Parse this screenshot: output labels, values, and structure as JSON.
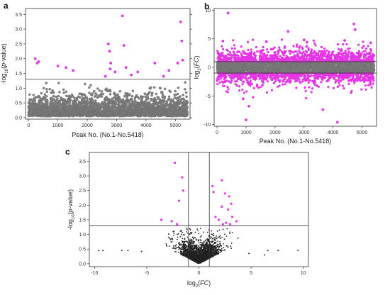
{
  "figure": {
    "panels": [
      {
        "label": "a"
      },
      {
        "label": "b"
      },
      {
        "label": "c"
      }
    ]
  },
  "chart_data": [
    {
      "id": "a",
      "type": "scatter",
      "title": "",
      "xlabel": "Peak No. (No.1-No.5418)",
      "ylabel": "-log10(p-value)",
      "xlim": [
        -100,
        5500
      ],
      "ylim": [
        -0.05,
        3.7
      ],
      "xticks": [
        0,
        1000,
        2000,
        3000,
        4000,
        5000
      ],
      "yticks": [
        0.0,
        0.5,
        1.0,
        1.5,
        2.0,
        2.5,
        3.0,
        3.5
      ],
      "threshold_y": 1.3,
      "grid": false,
      "colors": {
        "significant": "#e535e6",
        "non_significant": "#808080",
        "threshold": "#555555"
      },
      "significant_points": [
        [
          230,
          2.0
        ],
        [
          300,
          1.85
        ],
        [
          350,
          1.9
        ],
        [
          1000,
          1.75
        ],
        [
          1280,
          1.7
        ],
        [
          1520,
          1.6
        ],
        [
          2620,
          1.4
        ],
        [
          2720,
          2.5
        ],
        [
          2760,
          2.25
        ],
        [
          2800,
          1.85
        ],
        [
          2780,
          1.65
        ],
        [
          2950,
          1.55
        ],
        [
          3200,
          3.45
        ],
        [
          3250,
          2.45
        ],
        [
          3320,
          1.7
        ],
        [
          3500,
          1.45
        ],
        [
          3720,
          1.55
        ],
        [
          4300,
          1.85
        ],
        [
          4600,
          1.4
        ],
        [
          4780,
          1.6
        ],
        [
          5080,
          1.85
        ],
        [
          5180,
          3.25
        ],
        [
          5220,
          2.6
        ],
        [
          5250,
          1.95
        ]
      ]
    },
    {
      "id": "b",
      "type": "scatter",
      "title": "",
      "xlabel": "Peak No. (No.1-No.5418)",
      "ylabel": "log2(FC)",
      "xlim": [
        -100,
        5500
      ],
      "ylim": [
        -10.3,
        10.3
      ],
      "xticks": [
        0,
        1000,
        2000,
        3000,
        4000,
        5000
      ],
      "yticks": [
        -10,
        -5,
        0,
        5,
        10
      ],
      "threshold_y": [
        1,
        -1
      ],
      "grid": false,
      "colors": {
        "significant": "#e535e6",
        "non_significant": "#808080",
        "threshold": "#333333"
      },
      "significant_points": [
        [
          380,
          9.5
        ],
        [
          1000,
          -9.2
        ],
        [
          4150,
          -9.6
        ],
        [
          3650,
          -7.4
        ],
        [
          1100,
          -6.8
        ],
        [
          4720,
          7.6
        ],
        [
          4760,
          6.6
        ],
        [
          2450,
          6.3
        ],
        [
          3000,
          4.8
        ],
        [
          1700,
          4.5
        ],
        [
          200,
          4.6
        ],
        [
          4400,
          4.7
        ],
        [
          5300,
          4.3
        ],
        [
          3100,
          4.4
        ],
        [
          900,
          -5.5
        ]
      ]
    },
    {
      "id": "c",
      "type": "scatter",
      "title": "",
      "xlabel": "log2(FC)",
      "ylabel": "-log10(p-value)",
      "xlim": [
        -10.5,
        10.5
      ],
      "ylim": [
        -0.1,
        3.8
      ],
      "xticks": [
        -10,
        -5,
        0,
        5,
        10
      ],
      "yticks": [
        0.0,
        0.5,
        1.0,
        1.5,
        2.0,
        2.5,
        3.0,
        3.5
      ],
      "threshold_y": 1.3,
      "threshold_x": [
        -1,
        1
      ],
      "grid": false,
      "colors": {
        "significant": "#e535e6",
        "non_significant": "#222222",
        "threshold": "#333333"
      },
      "significant_points": [
        [
          -2.3,
          3.45
        ],
        [
          -1.6,
          2.95
        ],
        [
          -1.5,
          2.5
        ],
        [
          -1.9,
          2.15
        ],
        [
          -3.6,
          1.5
        ],
        [
          -2.6,
          1.45
        ],
        [
          -2.1,
          1.35
        ],
        [
          1.3,
          2.65
        ],
        [
          1.4,
          2.45
        ],
        [
          2.2,
          2.85
        ],
        [
          2.5,
          2.4
        ],
        [
          2.9,
          2.3
        ],
        [
          2.2,
          1.95
        ],
        [
          3.1,
          2.05
        ],
        [
          2.8,
          1.85
        ],
        [
          3.2,
          1.6
        ],
        [
          3.6,
          1.45
        ],
        [
          2.6,
          1.4
        ],
        [
          1.6,
          1.6
        ],
        [
          1.9,
          1.5
        ],
        [
          2.3,
          1.35
        ],
        [
          3.0,
          1.35
        ]
      ],
      "outlier_points": [
        [
          -9.6,
          0.45
        ],
        [
          -9.2,
          0.45
        ],
        [
          -7.4,
          0.45
        ],
        [
          -6.8,
          0.45
        ],
        [
          -5.5,
          0.42
        ],
        [
          7.6,
          0.45
        ],
        [
          6.6,
          0.45
        ],
        [
          9.5,
          0.45
        ],
        [
          4.8,
          0.35
        ],
        [
          6.3,
          0.3
        ]
      ]
    }
  ]
}
